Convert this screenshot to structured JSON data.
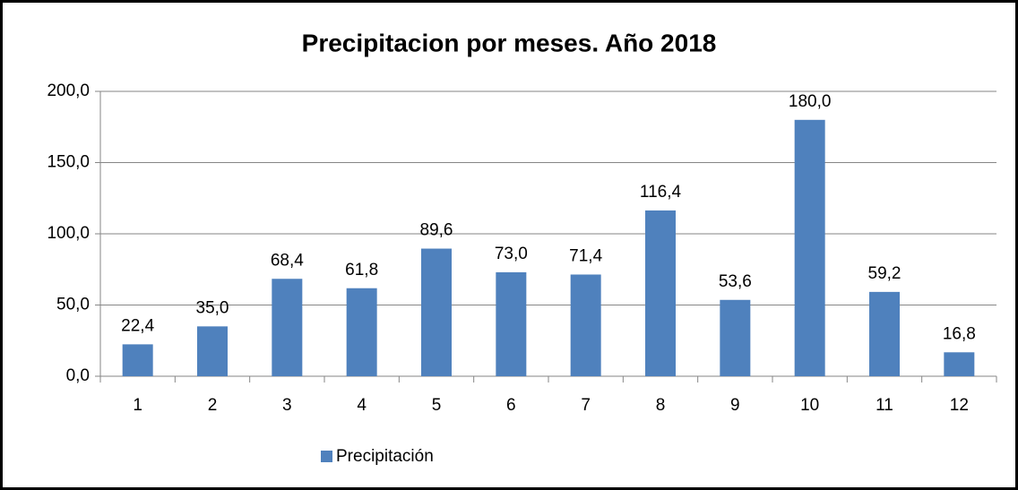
{
  "chart_data": {
    "type": "bar",
    "title": "Precipitacion por meses. Año 2018",
    "categories": [
      "1",
      "2",
      "3",
      "4",
      "5",
      "6",
      "7",
      "8",
      "9",
      "10",
      "11",
      "12"
    ],
    "series": [
      {
        "name": "Precipitación",
        "color": "#4f81bd",
        "values": [
          22.4,
          35.0,
          68.4,
          61.8,
          89.6,
          73.0,
          71.4,
          116.4,
          53.6,
          180.0,
          59.2,
          16.8
        ],
        "value_labels": [
          "22,4",
          "35,0",
          "68,4",
          "61,8",
          "89,6",
          "73,0",
          "71,4",
          "116,4",
          "53,6",
          "180,0",
          "59,2",
          "16,8"
        ]
      }
    ],
    "ylim": [
      0,
      200
    ],
    "yticks": [
      {
        "value": 0,
        "label": "0,0"
      },
      {
        "value": 50,
        "label": "50,0"
      },
      {
        "value": 100,
        "label": "100,0"
      },
      {
        "value": 150,
        "label": "150,0"
      },
      {
        "value": 200,
        "label": "200,0"
      }
    ],
    "grid": true,
    "legend": "bottom"
  }
}
